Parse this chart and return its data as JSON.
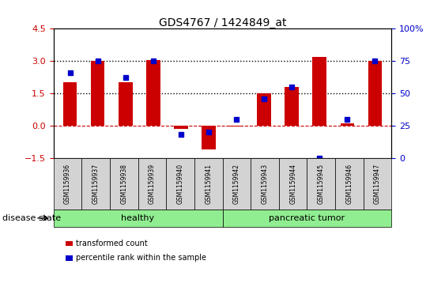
{
  "title": "GDS4767 / 1424849_at",
  "samples": [
    "GSM1159936",
    "GSM1159937",
    "GSM1159938",
    "GSM1159939",
    "GSM1159940",
    "GSM1159941",
    "GSM1159942",
    "GSM1159943",
    "GSM1159944",
    "GSM1159945",
    "GSM1159946",
    "GSM1159947"
  ],
  "transformed_counts": [
    2.0,
    3.0,
    2.0,
    3.05,
    -0.15,
    -1.1,
    -0.05,
    1.5,
    1.8,
    3.2,
    0.1,
    3.0
  ],
  "percentile_ranks": [
    66,
    75,
    62,
    75,
    18,
    20,
    30,
    46,
    55,
    0,
    30,
    75
  ],
  "bar_color": "#cc0000",
  "dot_color": "#0000cc",
  "ylim_left": [
    -1.5,
    4.5
  ],
  "ylim_right": [
    0,
    100
  ],
  "yticks_left": [
    -1.5,
    0,
    1.5,
    3,
    4.5
  ],
  "yticks_right": [
    0,
    25,
    50,
    75,
    100
  ],
  "hlines": [
    0,
    1.5,
    3.0
  ],
  "healthy_indices": [
    0,
    5
  ],
  "tumor_indices": [
    6,
    11
  ],
  "group_labels": [
    "healthy",
    "pancreatic tumor"
  ],
  "group_bg_color": "#90ee90",
  "label_row_bg": "#d3d3d3",
  "disease_state_label": "disease state",
  "legend_items": [
    {
      "label": "transformed count",
      "color": "#cc0000"
    },
    {
      "label": "percentile rank within the sample",
      "color": "#0000cc"
    }
  ],
  "bar_width": 0.5
}
